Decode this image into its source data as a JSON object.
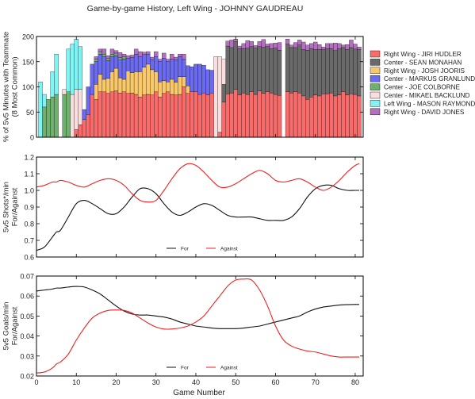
{
  "title": "Game-by-game History, Left Wing - JOHNNY GAUDREAU",
  "xlabel": "Game Number",
  "colors": {
    "Right Wing - JIRI HUDLER": "#f76b6b",
    "Center - SEAN MONAHAN": "#6a6a6a",
    "Right Wing - JOSH JOORIS": "#f8c86a",
    "Center - MARKUS GRANLUND": "#6b6bef",
    "Center - JOE COLBORNE": "#6fb06f",
    "Center - MIKAEL BACKLUND": "#f8dede",
    "Left Wing - MASON RAYMOND": "#7ef4f4",
    "Right Wing - DAVID JONES": "#b46fc0",
    "for_line": "#111111",
    "against_line": "#ee2222"
  },
  "chart_data": [
    {
      "type": "bar",
      "stacked": true,
      "ylabel": "% of 5v5 Minutes with Teammate\n(8 Most Common)",
      "xlim": [
        0,
        82
      ],
      "ylim": [
        0,
        200
      ],
      "yticks": [
        0,
        50,
        100,
        150,
        200
      ],
      "xticks": [
        0,
        10,
        20,
        30,
        40,
        50,
        60,
        70,
        80
      ],
      "legend_placement": "right",
      "legend": [
        "Right Wing - JIRI HUDLER",
        "Center - SEAN MONAHAN",
        "Right Wing - JOSH JOORIS",
        "Center - MARKUS GRANLUND",
        "Center - JOE COLBORNE",
        "Center - MIKAEL BACKLUND",
        "Left Wing - MASON RAYMOND",
        "Right Wing - DAVID JONES"
      ],
      "x": [
        1,
        2,
        3,
        4,
        5,
        7,
        8,
        9,
        10,
        11,
        12,
        13,
        14,
        15,
        16,
        17,
        18,
        19,
        20,
        21,
        22,
        23,
        24,
        25,
        26,
        27,
        28,
        29,
        30,
        31,
        32,
        33,
        34,
        35,
        36,
        37,
        38,
        39,
        40,
        41,
        42,
        43,
        44,
        45,
        46,
        47,
        48,
        49,
        50,
        51,
        52,
        53,
        54,
        55,
        56,
        57,
        58,
        59,
        60,
        61,
        62,
        63,
        64,
        65,
        66,
        67,
        68,
        69,
        70,
        71,
        72,
        73,
        74,
        75,
        76,
        77,
        78,
        79,
        80,
        81
      ],
      "series": [
        {
          "name": "Right Wing - JIRI HUDLER",
          "values": [
            0,
            0,
            0,
            0,
            0,
            0,
            0,
            0,
            15,
            25,
            35,
            45,
            85,
            75,
            90,
            90,
            87,
            90,
            92,
            88,
            90,
            87,
            88,
            85,
            80,
            84,
            85,
            84,
            90,
            80,
            87,
            90,
            85,
            84,
            85,
            100,
            87,
            90,
            90,
            85,
            88,
            84,
            88,
            0,
            10,
            70,
            86,
            88,
            95,
            84,
            88,
            85,
            90,
            85,
            92,
            87,
            90,
            88,
            85,
            83,
            0,
            90,
            88,
            90,
            88,
            82,
            75,
            80,
            84,
            82,
            86,
            86,
            88,
            82,
            84,
            90,
            84,
            86,
            85,
            82
          ]
        },
        {
          "name": "Center - SEAN MONAHAN",
          "values": [
            0,
            0,
            0,
            0,
            0,
            0,
            0,
            0,
            0,
            0,
            0,
            0,
            0,
            0,
            0,
            0,
            0,
            0,
            0,
            0,
            0,
            0,
            0,
            0,
            0,
            0,
            0,
            0,
            0,
            0,
            0,
            0,
            0,
            0,
            0,
            0,
            0,
            0,
            0,
            0,
            0,
            0,
            0,
            0,
            0,
            35,
            95,
            90,
            95,
            92,
            88,
            92,
            90,
            92,
            88,
            92,
            90,
            88,
            92,
            90,
            0,
            95,
            90,
            88,
            95,
            92,
            98,
            96,
            90,
            92,
            88,
            90,
            88,
            90,
            92,
            88,
            90,
            92,
            90,
            92
          ]
        },
        {
          "name": "Right Wing - JOSH JOORIS",
          "values": [
            0,
            0,
            0,
            0,
            0,
            0,
            0,
            0,
            0,
            0,
            0,
            0,
            0,
            30,
            35,
            25,
            30,
            40,
            45,
            30,
            25,
            45,
            40,
            45,
            50,
            55,
            60,
            50,
            40,
            30,
            25,
            20,
            30,
            25,
            35,
            20,
            15,
            0,
            0,
            0,
            0,
            0,
            0,
            0,
            0,
            0,
            0,
            0,
            0,
            0,
            0,
            0,
            0,
            0,
            0,
            0,
            0,
            0,
            0,
            0,
            0,
            0,
            0,
            0,
            0,
            0,
            0,
            0,
            0,
            0,
            0,
            0,
            0,
            0,
            0,
            0,
            0,
            0,
            0,
            0
          ]
        },
        {
          "name": "Center - MARKUS GRANLUND",
          "values": [
            0,
            0,
            0,
            0,
            0,
            0,
            0,
            0,
            0,
            0,
            20,
            55,
            60,
            45,
            40,
            45,
            35,
            30,
            25,
            35,
            40,
            25,
            30,
            35,
            30,
            25,
            20,
            20,
            30,
            40,
            45,
            40,
            40,
            45,
            40,
            35,
            40,
            50,
            55,
            60,
            55,
            50,
            45,
            0,
            0,
            0,
            0,
            0,
            0,
            0,
            0,
            0,
            0,
            0,
            0,
            0,
            0,
            0,
            0,
            0,
            0,
            0,
            0,
            0,
            0,
            0,
            0,
            0,
            0,
            0,
            0,
            0,
            0,
            0,
            0,
            0,
            0,
            0,
            0,
            0
          ]
        },
        {
          "name": "Center - JOE COLBORNE",
          "values": [
            0,
            60,
            75,
            80,
            85,
            85,
            90,
            0,
            0,
            0,
            0,
            0,
            0,
            5,
            5,
            5,
            5,
            5,
            5,
            5,
            5,
            0,
            0,
            0,
            0,
            0,
            0,
            0,
            0,
            0,
            0,
            0,
            0,
            0,
            0,
            0,
            0,
            0,
            0,
            0,
            0,
            0,
            0,
            0,
            0,
            0,
            0,
            0,
            0,
            0,
            0,
            0,
            0,
            0,
            0,
            0,
            0,
            0,
            0,
            0,
            0,
            0,
            0,
            0,
            0,
            0,
            0,
            0,
            0,
            0,
            0,
            0,
            0,
            0,
            0,
            0,
            0,
            0,
            0,
            0
          ]
        },
        {
          "name": "Center - MIKAEL BACKLUND",
          "values": [
            0,
            0,
            0,
            0,
            0,
            10,
            0,
            85,
            80,
            70,
            0,
            0,
            0,
            0,
            0,
            0,
            0,
            0,
            0,
            0,
            0,
            0,
            0,
            0,
            0,
            0,
            0,
            0,
            0,
            0,
            0,
            0,
            0,
            0,
            0,
            0,
            0,
            0,
            0,
            0,
            0,
            0,
            0,
            160,
            150,
            50,
            0,
            0,
            0,
            0,
            0,
            0,
            0,
            0,
            0,
            0,
            0,
            0,
            0,
            0,
            0,
            0,
            0,
            0,
            0,
            0,
            0,
            0,
            0,
            0,
            0,
            0,
            0,
            0,
            0,
            0,
            0,
            0,
            0,
            0
          ]
        },
        {
          "name": "Left Wing - MASON RAYMOND",
          "values": [
            110,
            25,
            0,
            50,
            80,
            0,
            85,
            100,
            100,
            85,
            0,
            0,
            0,
            0,
            0,
            0,
            0,
            0,
            0,
            0,
            0,
            0,
            0,
            0,
            0,
            0,
            0,
            0,
            0,
            0,
            0,
            0,
            0,
            0,
            0,
            0,
            0,
            0,
            0,
            0,
            0,
            0,
            0,
            0,
            0,
            0,
            0,
            0,
            0,
            0,
            0,
            0,
            0,
            0,
            0,
            0,
            0,
            0,
            0,
            0,
            0,
            0,
            0,
            0,
            0,
            0,
            0,
            0,
            0,
            0,
            0,
            0,
            0,
            0,
            0,
            0,
            0,
            0,
            0,
            0
          ]
        },
        {
          "name": "Right Wing - DAVID JONES",
          "values": [
            0,
            0,
            0,
            0,
            0,
            0,
            0,
            0,
            0,
            0,
            0,
            0,
            0,
            5,
            5,
            10,
            5,
            10,
            5,
            10,
            5,
            5,
            5,
            10,
            10,
            5,
            5,
            5,
            10,
            5,
            10,
            5,
            10,
            5,
            5,
            10,
            0,
            0,
            0,
            0,
            0,
            0,
            0,
            0,
            0,
            0,
            10,
            15,
            5,
            5,
            10,
            15,
            10,
            5,
            10,
            15,
            5,
            10,
            10,
            15,
            0,
            10,
            5,
            10,
            10,
            15,
            10,
            10,
            15,
            10,
            5,
            10,
            10,
            15,
            10,
            5,
            10,
            15,
            10,
            5
          ]
        }
      ]
    },
    {
      "type": "line",
      "ylabel": "5v5 Shots*/min\nFor/Against",
      "xlim": [
        0,
        82
      ],
      "ylim": [
        0.6,
        1.2
      ],
      "yticks": [
        0.6,
        0.7,
        0.8,
        0.9,
        1.0,
        1.1,
        1.2
      ],
      "legend_placement": "bottom-center",
      "x": [
        0,
        2,
        4,
        5,
        6,
        8,
        10,
        12,
        14,
        16,
        18,
        20,
        22,
        24,
        26,
        28,
        30,
        32,
        34,
        36,
        38,
        40,
        42,
        44,
        46,
        48,
        50,
        52,
        54,
        56,
        58,
        60,
        62,
        64,
        66,
        68,
        70,
        72,
        74,
        76,
        78,
        80,
        81
      ],
      "series": [
        {
          "name": "For",
          "values": [
            0.64,
            0.66,
            0.72,
            0.75,
            0.76,
            0.84,
            0.92,
            0.94,
            0.92,
            0.89,
            0.86,
            0.86,
            0.9,
            0.96,
            1.01,
            1.01,
            0.98,
            0.92,
            0.87,
            0.85,
            0.87,
            0.9,
            0.92,
            0.91,
            0.88,
            0.85,
            0.84,
            0.84,
            0.84,
            0.83,
            0.82,
            0.82,
            0.82,
            0.84,
            0.89,
            0.96,
            1.01,
            1.03,
            1.03,
            1.01,
            1.0,
            1.0,
            1.0
          ]
        },
        {
          "name": "Against",
          "values": [
            1.02,
            1.03,
            1.05,
            1.05,
            1.06,
            1.05,
            1.03,
            1.02,
            1.04,
            1.06,
            1.07,
            1.06,
            1.03,
            0.98,
            0.94,
            0.93,
            0.94,
            1.0,
            1.07,
            1.13,
            1.16,
            1.15,
            1.11,
            1.06,
            1.02,
            1.02,
            1.04,
            1.07,
            1.1,
            1.12,
            1.1,
            1.06,
            1.05,
            1.06,
            1.07,
            1.05,
            1.02,
            1.0,
            1.02,
            1.06,
            1.11,
            1.15,
            1.16
          ]
        }
      ]
    },
    {
      "type": "line",
      "ylabel": "5v5 Goals/min\nFor/Against",
      "xlabel": "Game Number",
      "xlim": [
        0,
        82
      ],
      "ylim": [
        0.02,
        0.07
      ],
      "yticks": [
        0.02,
        0.03,
        0.04,
        0.05,
        0.06,
        0.07
      ],
      "xticks": [
        0,
        10,
        20,
        30,
        40,
        50,
        60,
        70,
        80
      ],
      "legend_placement": "bottom-center",
      "x": [
        0,
        2,
        4,
        5,
        6,
        8,
        10,
        12,
        14,
        16,
        18,
        20,
        22,
        24,
        26,
        28,
        30,
        32,
        34,
        36,
        38,
        40,
        42,
        44,
        46,
        48,
        50,
        52,
        54,
        56,
        58,
        60,
        62,
        64,
        66,
        68,
        70,
        72,
        74,
        76,
        78,
        80,
        81
      ],
      "series": [
        {
          "name": "For",
          "values": [
            0.0625,
            0.063,
            0.0635,
            0.064,
            0.064,
            0.0645,
            0.0648,
            0.0645,
            0.063,
            0.061,
            0.058,
            0.055,
            0.0525,
            0.051,
            0.0505,
            0.0505,
            0.05,
            0.0495,
            0.0485,
            0.047,
            0.046,
            0.045,
            0.0445,
            0.044,
            0.0437,
            0.0437,
            0.0437,
            0.044,
            0.0445,
            0.045,
            0.046,
            0.047,
            0.048,
            0.049,
            0.05,
            0.052,
            0.0535,
            0.0545,
            0.055,
            0.0555,
            0.0557,
            0.0558,
            0.0558
          ]
        },
        {
          "name": "Against",
          "values": [
            0.0215,
            0.022,
            0.024,
            0.026,
            0.027,
            0.031,
            0.038,
            0.044,
            0.049,
            0.0515,
            0.0528,
            0.053,
            0.0528,
            0.0515,
            0.049,
            0.0465,
            0.0445,
            0.0435,
            0.0435,
            0.044,
            0.045,
            0.047,
            0.05,
            0.055,
            0.06,
            0.065,
            0.068,
            0.0685,
            0.068,
            0.063,
            0.055,
            0.045,
            0.038,
            0.035,
            0.0335,
            0.0325,
            0.032,
            0.031,
            0.03,
            0.0295,
            0.0295,
            0.0295,
            0.0295
          ]
        }
      ]
    }
  ]
}
